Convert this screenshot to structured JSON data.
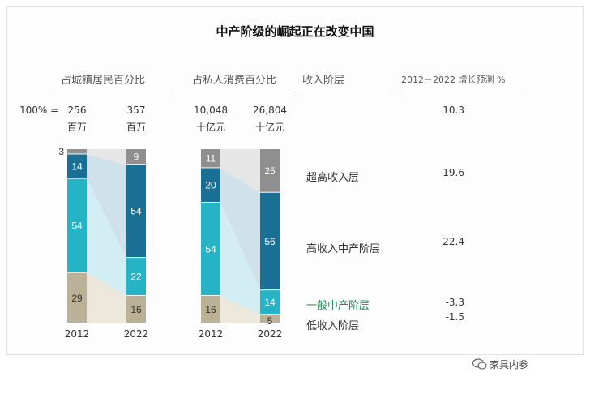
{
  "title": "中产阶级的崛起正在改变中国",
  "headers": {
    "population": "占城镇居民百分比",
    "consumption": "占私人消费百分比",
    "tier": "收入阶层",
    "growth": "2012－2022 增长预测 %"
  },
  "totals": {
    "label": "100% =",
    "population": [
      {
        "value": "256",
        "unit": "百万"
      },
      {
        "value": "357",
        "unit": "百万"
      }
    ],
    "consumption": [
      {
        "value": "10,048",
        "unit": "十亿元"
      },
      {
        "value": "26,804",
        "unit": "十亿元"
      }
    ],
    "total_growth": "10.3"
  },
  "tiers": [
    {
      "name": "超高收入层",
      "growth": "19.6",
      "color": "#8f8f8f"
    },
    {
      "name": "高收入中产阶层",
      "growth": "22.4",
      "color": "#1a6f95"
    },
    {
      "name": "一般中产阶层",
      "growth": "-3.3",
      "color": "#26b3c5"
    },
    {
      "name": "低收入阶层",
      "growth": "-1.5",
      "color": "#bbb197"
    }
  ],
  "chart_data": [
    {
      "type": "bar",
      "stacked": true,
      "title": "占城镇居民百分比",
      "categories": [
        "2012",
        "2022"
      ],
      "series": [
        {
          "name": "超高收入层",
          "values": [
            3,
            9
          ]
        },
        {
          "name": "高收入中产阶层",
          "values": [
            14,
            54
          ]
        },
        {
          "name": "一般中产阶层",
          "values": [
            54,
            22
          ]
        },
        {
          "name": "低收入阶层",
          "values": [
            29,
            16
          ]
        }
      ]
    },
    {
      "type": "bar",
      "stacked": true,
      "title": "占私人消费百分比",
      "categories": [
        "2012",
        "2022"
      ],
      "series": [
        {
          "name": "超高收入层",
          "values": [
            11,
            25
          ]
        },
        {
          "name": "高收入中产阶层",
          "values": [
            20,
            56
          ]
        },
        {
          "name": "一般中产阶层",
          "values": [
            54,
            14
          ]
        },
        {
          "name": "低收入阶层",
          "values": [
            16,
            5
          ]
        }
      ]
    }
  ],
  "watermark": "家具内参"
}
